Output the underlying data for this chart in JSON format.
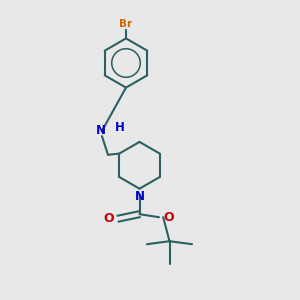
{
  "background_color": "#e8e8e8",
  "bond_color": "#2d6060",
  "N_color": "#0000cc",
  "O_color": "#cc0000",
  "Br_color": "#cc6600",
  "line_width": 1.5,
  "labels": {
    "Br": {
      "text": "Br",
      "color": "#cc6600",
      "fontsize": 7.5
    },
    "N": {
      "text": "N",
      "color": "#0000cc",
      "fontsize": 8.5
    },
    "H": {
      "text": "H",
      "color": "#0000cc",
      "fontsize": 8.5
    },
    "O": {
      "text": "O",
      "color": "#cc0000",
      "fontsize": 9
    }
  }
}
